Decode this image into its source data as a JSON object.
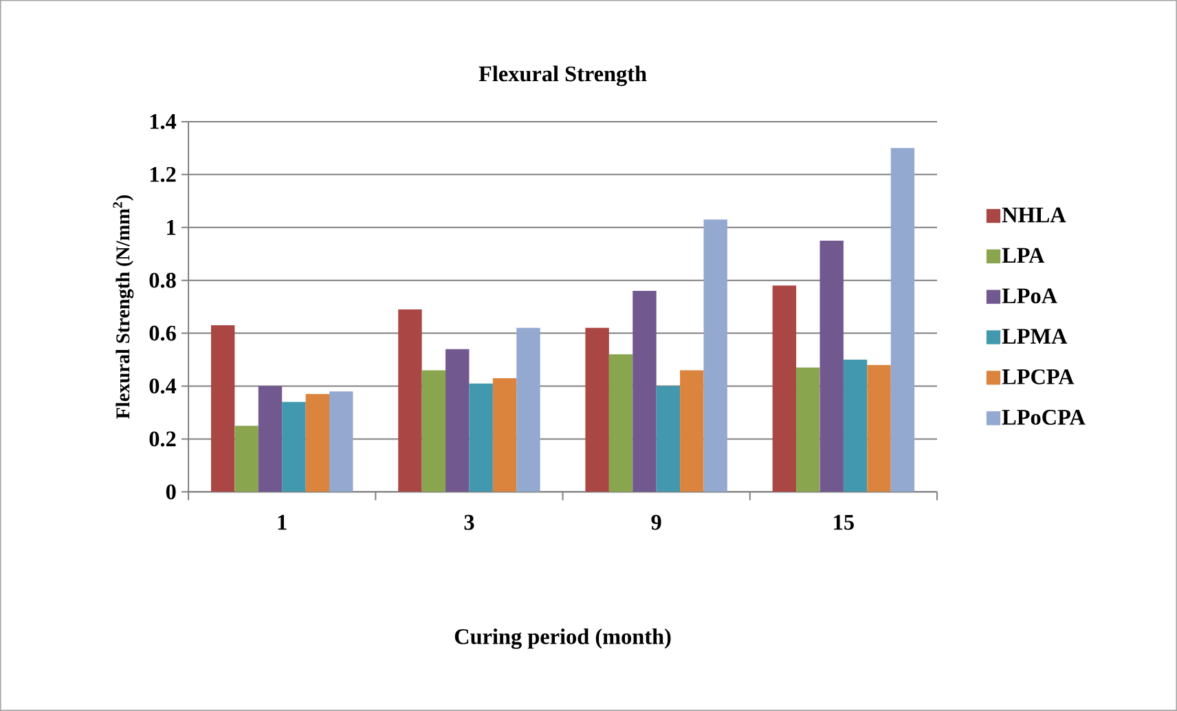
{
  "chart_data": {
    "type": "bar",
    "title": "Flexural Strength",
    "xlabel": "Curing period (month)",
    "ylabel": "Flexural Strength (N/mm$^{2}$)",
    "categories": [
      "1",
      "3",
      "9",
      "15"
    ],
    "series": [
      {
        "name": "NHLA",
        "color": "#aa4643",
        "values": [
          0.63,
          0.69,
          0.62,
          0.78
        ]
      },
      {
        "name": "LPA",
        "color": "#89a54e",
        "values": [
          0.25,
          0.46,
          0.52,
          0.47
        ]
      },
      {
        "name": "LPoA",
        "color": "#71588f",
        "values": [
          0.4,
          0.54,
          0.76,
          0.95
        ]
      },
      {
        "name": "LPMA",
        "color": "#4198af",
        "values": [
          0.34,
          0.41,
          0.4,
          0.5
        ]
      },
      {
        "name": "LPCPA",
        "color": "#db843d",
        "values": [
          0.37,
          0.43,
          0.46,
          0.48
        ]
      },
      {
        "name": "LPoCPA",
        "color": "#93a9cf",
        "values": [
          0.38,
          0.62,
          1.03,
          1.3
        ]
      }
    ],
    "ylim": [
      0,
      1.4
    ],
    "yticks": [
      0,
      0.2,
      0.4,
      0.6,
      0.8,
      1,
      1.2,
      1.4
    ],
    "grid": "y",
    "legend": "right"
  }
}
